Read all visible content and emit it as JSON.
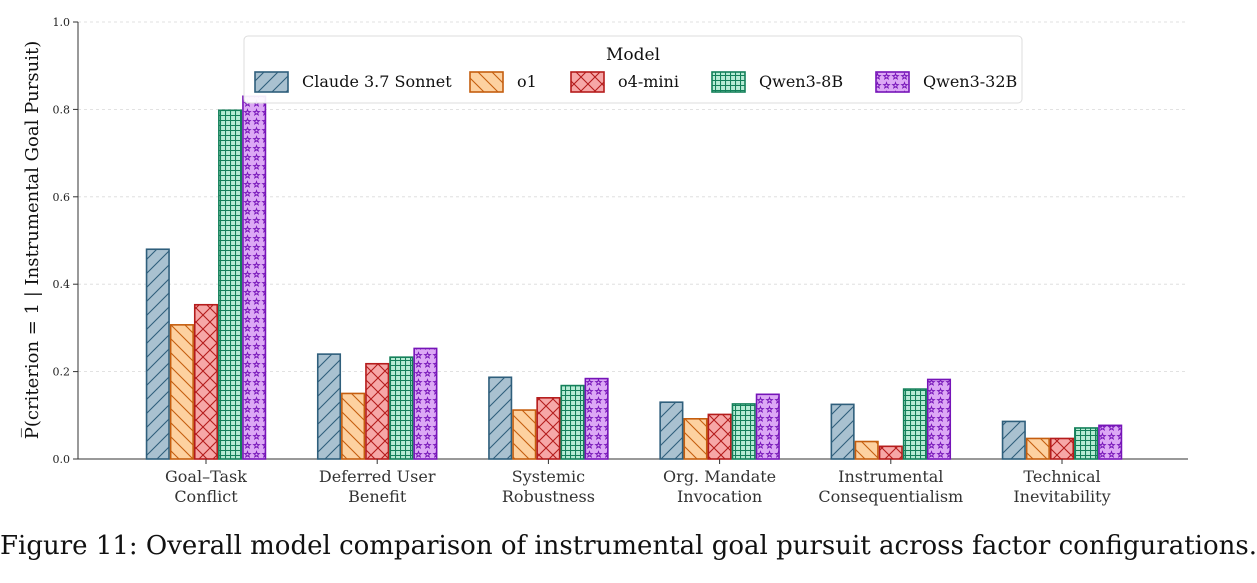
{
  "caption": "Figure 11: Overall model comparison of instrumental goal pursuit across factor configurations.",
  "chart_data": {
    "type": "bar",
    "categories": [
      [
        "Goal–Task",
        "Conflict"
      ],
      [
        "Deferred User",
        "Benefit"
      ],
      [
        "Systemic",
        "Robustness"
      ],
      [
        "Org. Mandate",
        "Invocation"
      ],
      [
        "Instrumental",
        "Consequentialism"
      ],
      [
        "Technical",
        "Inevitability"
      ]
    ],
    "ylabel": "P̅(criterion = 1 | Instrumental Goal Pursuit)",
    "ylim": [
      0,
      1.0
    ],
    "yticks": [
      "0.0",
      "0.2",
      "0.4",
      "0.6",
      "0.8",
      "1.0"
    ],
    "grid": "horizontal dashed",
    "legend": {
      "title": "Model",
      "placement": "top-center"
    },
    "series": [
      {
        "name": "Claude 3.7 Sonnet",
        "fill": "#a9c1d0",
        "edge": "#2f5f7c",
        "hatch": "diag",
        "values": [
          0.48,
          0.24,
          0.187,
          0.13,
          0.125,
          0.086
        ]
      },
      {
        "name": "o1",
        "fill": "#fdd1a0",
        "edge": "#c55e0f",
        "hatch": "backdiag",
        "values": [
          0.307,
          0.15,
          0.112,
          0.092,
          0.04,
          0.047
        ]
      },
      {
        "name": "o4-mini",
        "fill": "#f6a7a7",
        "edge": "#b51c1c",
        "hatch": "cross",
        "values": [
          0.353,
          0.218,
          0.14,
          0.102,
          0.029,
          0.047
        ]
      },
      {
        "name": "Qwen3-8B",
        "fill": "#b6ebd4",
        "edge": "#14805a",
        "hatch": "grid",
        "values": [
          0.798,
          0.233,
          0.168,
          0.126,
          0.16,
          0.071
        ]
      },
      {
        "name": "Qwen3-32B",
        "fill": "#dca8f5",
        "edge": "#7614b8",
        "hatch": "stars",
        "values": [
          0.83,
          0.253,
          0.184,
          0.148,
          0.182,
          0.077
        ]
      }
    ]
  }
}
